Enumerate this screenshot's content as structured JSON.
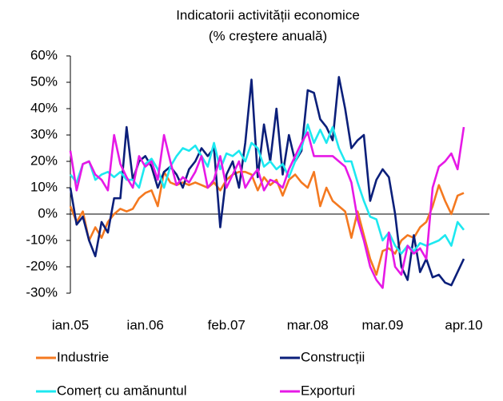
{
  "chart_data": {
    "type": "line",
    "title": "Indicatorii activității economice",
    "subtitle": "(% creştere anuală)",
    "categories": [
      "ian.05",
      null,
      null,
      null,
      null,
      null,
      null,
      null,
      null,
      null,
      null,
      null,
      "ian.06",
      null,
      null,
      null,
      null,
      null,
      null,
      null,
      null,
      null,
      null,
      null,
      null,
      "feb.07",
      null,
      null,
      null,
      null,
      null,
      null,
      null,
      null,
      null,
      null,
      null,
      null,
      "mar.08",
      null,
      null,
      null,
      null,
      null,
      null,
      null,
      null,
      null,
      null,
      null,
      "mar.09",
      null,
      null,
      null,
      null,
      null,
      null,
      null,
      null,
      null,
      null,
      null,
      null,
      "apr.10"
    ],
    "series": [
      {
        "name": "Industrie",
        "color": "#f47920",
        "values": [
          3,
          -3,
          1,
          -10,
          -5,
          -9,
          -3,
          0,
          2,
          1,
          2,
          6,
          8,
          9,
          3,
          16,
          12,
          11,
          12,
          11,
          12,
          11,
          10,
          12,
          9,
          13,
          15,
          16,
          16,
          15,
          9,
          14,
          11,
          13,
          7,
          13,
          15,
          12,
          10,
          16,
          3,
          10,
          5,
          3,
          1,
          -9,
          1,
          -8,
          -17,
          -23,
          -14,
          -13,
          -15,
          -10,
          -8,
          -9,
          -5,
          -3,
          3,
          11,
          5,
          0,
          7,
          8
        ]
      },
      {
        "name": "Construcții",
        "color": "#0b1f7a",
        "values": [
          10,
          -4,
          -1,
          -10,
          -16,
          -3,
          -7,
          6,
          6,
          33,
          13,
          20,
          22,
          18,
          10,
          16,
          18,
          15,
          10,
          17,
          20,
          25,
          22,
          25,
          -5,
          15,
          20,
          10,
          27,
          51,
          14,
          34,
          20,
          40,
          15,
          30,
          20,
          24,
          47,
          46,
          36,
          33,
          28,
          52,
          40,
          25,
          28,
          30,
          5,
          13,
          17,
          14,
          0,
          -20,
          -25,
          -8,
          -22,
          -17,
          -24,
          -23,
          -26,
          -27,
          -22,
          -17
        ]
      },
      {
        "name": "Comerț cu amănuntul",
        "color": "#1de8f0",
        "values": [
          15,
          12,
          19,
          20,
          13,
          15,
          16,
          14,
          16,
          13,
          13,
          10,
          19,
          21,
          17,
          10,
          18,
          22,
          25,
          24,
          26,
          22,
          18,
          27,
          17,
          23,
          22,
          24,
          20,
          27,
          25,
          18,
          20,
          17,
          19,
          14,
          20,
          25,
          34,
          27,
          32,
          27,
          33,
          25,
          20,
          20,
          12,
          5,
          -1,
          -2,
          -10,
          -7,
          -12,
          -15,
          -12,
          -14,
          -11,
          -12,
          -11,
          -10,
          -8,
          -12,
          -3,
          -6
        ]
      },
      {
        "name": "Exporturi",
        "color": "#e619e6",
        "values": [
          24,
          9,
          19,
          20,
          15,
          13,
          9,
          30,
          19,
          14,
          10,
          22,
          18,
          20,
          13,
          30,
          20,
          11,
          14,
          12,
          16,
          22,
          10,
          13,
          22,
          10,
          15,
          20,
          10,
          14,
          17,
          9,
          13,
          12,
          10,
          17,
          22,
          27,
          31,
          22,
          22,
          22,
          22,
          20,
          18,
          12,
          -2,
          -10,
          -20,
          -25,
          -28,
          -7,
          -20,
          -23,
          -12,
          -15,
          -13,
          -17,
          10,
          18,
          20,
          23,
          17,
          33
        ]
      }
    ],
    "ylim": [
      -30,
      60
    ],
    "yticks": [
      {
        "value": -30,
        "label": "-30%"
      },
      {
        "value": -20,
        "label": "-20%"
      },
      {
        "value": -10,
        "label": "-10%"
      },
      {
        "value": 0,
        "label": "0%"
      },
      {
        "value": 10,
        "label": "10%"
      },
      {
        "value": 20,
        "label": "20%"
      },
      {
        "value": 30,
        "label": "30%"
      },
      {
        "value": 40,
        "label": "40%"
      },
      {
        "value": 50,
        "label": "50%"
      },
      {
        "value": 60,
        "label": "60%"
      }
    ],
    "grid": false
  }
}
